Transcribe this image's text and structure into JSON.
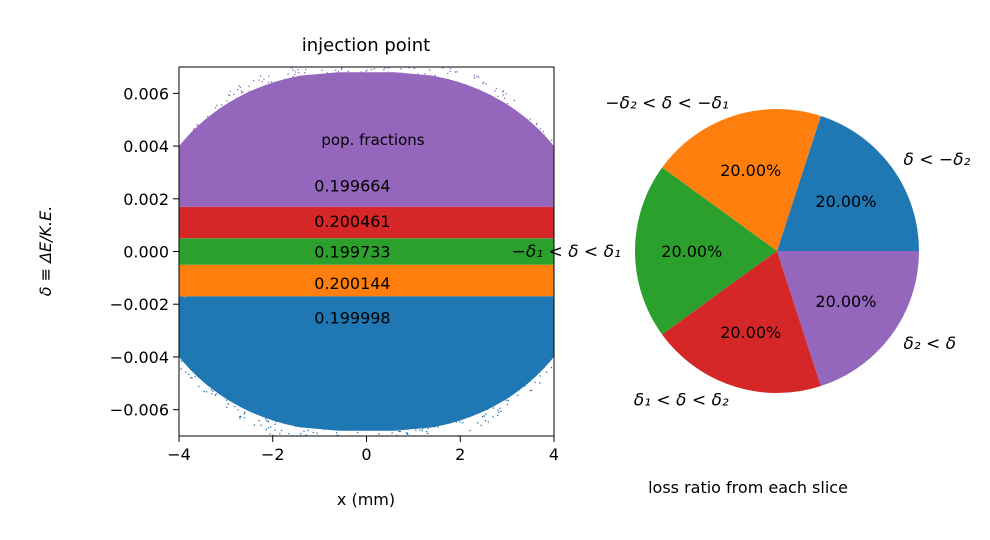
{
  "chart_data": [
    {
      "type": "scatter",
      "title": "injection point",
      "xlabel": "x (mm)",
      "ylabel": "δ ≡ ΔE/K.E.",
      "xlim": [
        -4,
        4
      ],
      "ylim": [
        -0.007,
        0.007
      ],
      "xticks": [
        -4,
        -2,
        0,
        2,
        4
      ],
      "xtick_labels": [
        "−4",
        "−2",
        "0",
        "2",
        "4"
      ],
      "yticks": [
        -0.006,
        -0.004,
        -0.002,
        0.0,
        0.002,
        0.004,
        0.006
      ],
      "ytick_labels": [
        "−0.006",
        "−0.004",
        "−0.002",
        "0.000",
        "0.002",
        "0.004",
        "0.006"
      ],
      "grid": false,
      "annotation_title": "pop. fractions",
      "bands": [
        {
          "label": "δ < −δ₂",
          "color": "#1f77b4",
          "y_range": [
            -0.007,
            -0.0017
          ],
          "fraction": "0.199998"
        },
        {
          "label": "−δ₂ < δ < −δ₁",
          "color": "#ff7f0e",
          "y_range": [
            -0.0017,
            -0.0005
          ],
          "fraction": "0.200144"
        },
        {
          "label": "−δ₁ < δ < δ₁",
          "color": "#2ca02c",
          "y_range": [
            -0.0005,
            0.0005
          ],
          "fraction": "0.199733"
        },
        {
          "label": "δ₁ < δ < δ₂",
          "color": "#d62728",
          "y_range": [
            0.0005,
            0.0017
          ],
          "fraction": "0.200461"
        },
        {
          "label": "δ₂ < δ",
          "color": "#9467bd",
          "y_range": [
            0.0017,
            0.007
          ],
          "fraction": "0.199664"
        }
      ]
    },
    {
      "type": "pie",
      "xlabel": "loss ratio from each slice",
      "slices": [
        {
          "label": "δ < −δ₂",
          "value": 20.0,
          "pct": "20.00%",
          "color": "#1f77b4"
        },
        {
          "label": "−δ₂ < δ < −δ₁",
          "value": 20.0,
          "pct": "20.00%",
          "color": "#ff7f0e"
        },
        {
          "label": "−δ₁ < δ < δ₁",
          "value": 20.0,
          "pct": "20.00%",
          "color": "#2ca02c"
        },
        {
          "label": "δ₁ < δ < δ₂",
          "value": 20.0,
          "pct": "20.00%",
          "color": "#d62728"
        },
        {
          "label": "δ₂ < δ",
          "value": 20.0,
          "pct": "20.00%",
          "color": "#9467bd"
        }
      ]
    }
  ]
}
